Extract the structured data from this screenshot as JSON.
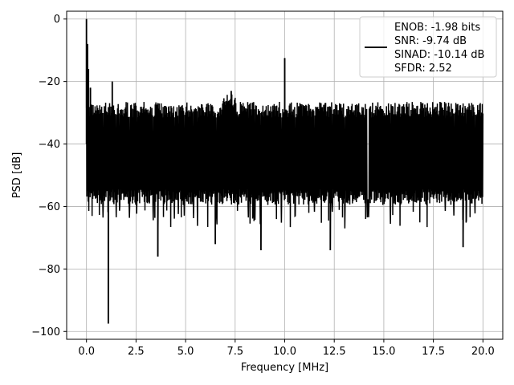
{
  "chart_data": {
    "type": "line",
    "xlabel": "Frequency [MHz]",
    "ylabel": "PSD [dB]",
    "xlim": [
      -1.0,
      21.0
    ],
    "ylim": [
      -102.5,
      2.5
    ],
    "grid": true,
    "legend_position": "top-right",
    "x_ticks": [
      0.0,
      2.5,
      5.0,
      7.5,
      10.0,
      12.5,
      15.0,
      17.5,
      20.0
    ],
    "x_tick_labels": [
      "0.0",
      "2.5",
      "5.0",
      "7.5",
      "10.0",
      "12.5",
      "15.0",
      "17.5",
      "20.0"
    ],
    "y_ticks": [
      0,
      -20,
      -40,
      -60,
      -80,
      -100
    ],
    "y_tick_labels": [
      "0",
      "−20",
      "−40",
      "−60",
      "−80",
      "−100"
    ],
    "legend_lines": [
      "ENOB: -1.98 bits",
      "SNR: -9.74 dB",
      "SINAD: -10.14 dB",
      "SFDR: 2.52"
    ],
    "series": [
      {
        "color": "#000000",
        "x_range": [
          0.0,
          20.0
        ],
        "noise_band": {
          "upper": -29,
          "lower": -57,
          "median": -40
        },
        "features": [
          {
            "x": 0.0,
            "y": 0.0
          },
          {
            "x": 0.05,
            "y": -8.0
          },
          {
            "x": 0.1,
            "y": -16.0
          },
          {
            "x": 0.2,
            "y": -22.0
          },
          {
            "x": 1.1,
            "y": -97.5
          },
          {
            "x": 1.3,
            "y": -20.0
          },
          {
            "x": 3.6,
            "y": -76.0
          },
          {
            "x": 6.5,
            "y": -72.0
          },
          {
            "x": 7.3,
            "y": -23.0
          },
          {
            "x": 8.8,
            "y": -74.0
          },
          {
            "x": 10.0,
            "y": -12.5
          },
          {
            "x": 12.3,
            "y": -74.0
          },
          {
            "x": 19.0,
            "y": -73.0
          }
        ]
      }
    ]
  }
}
